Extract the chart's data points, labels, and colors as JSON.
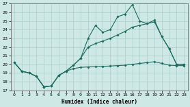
{
  "xlabel": "Humidex (Indice chaleur)",
  "xlim": [
    -0.5,
    23.5
  ],
  "ylim": [
    17,
    27
  ],
  "yticks": [
    17,
    18,
    19,
    20,
    21,
    22,
    23,
    24,
    25,
    26,
    27
  ],
  "xticks": [
    0,
    1,
    2,
    3,
    4,
    5,
    6,
    7,
    8,
    9,
    10,
    11,
    12,
    13,
    14,
    15,
    16,
    17,
    18,
    19,
    20,
    21,
    22,
    23
  ],
  "background_color": "#cde8e5",
  "line_color": "#1a6b60",
  "grid_color": "#aaceca",
  "line1_y": [
    20.2,
    19.2,
    19.0,
    18.6,
    17.4,
    17.5,
    18.7,
    19.2,
    19.9,
    20.7,
    23.0,
    24.5,
    23.7,
    24.0,
    25.5,
    25.8,
    26.9,
    25.0,
    24.7,
    25.1,
    23.2,
    21.8,
    20.0,
    20.0
  ],
  "line2_y": [
    20.2,
    19.2,
    19.0,
    18.6,
    17.4,
    17.5,
    18.7,
    19.2,
    19.9,
    20.7,
    22.0,
    22.4,
    22.7,
    23.0,
    23.4,
    23.8,
    24.3,
    24.5,
    24.7,
    24.9,
    23.2,
    21.8,
    20.0,
    20.0
  ],
  "line3_y": [
    20.2,
    19.2,
    19.0,
    18.6,
    17.4,
    17.5,
    18.7,
    19.2,
    19.5,
    19.65,
    19.7,
    19.73,
    19.76,
    19.8,
    19.85,
    19.9,
    20.0,
    20.1,
    20.2,
    20.3,
    20.1,
    19.9,
    19.85,
    19.85
  ]
}
